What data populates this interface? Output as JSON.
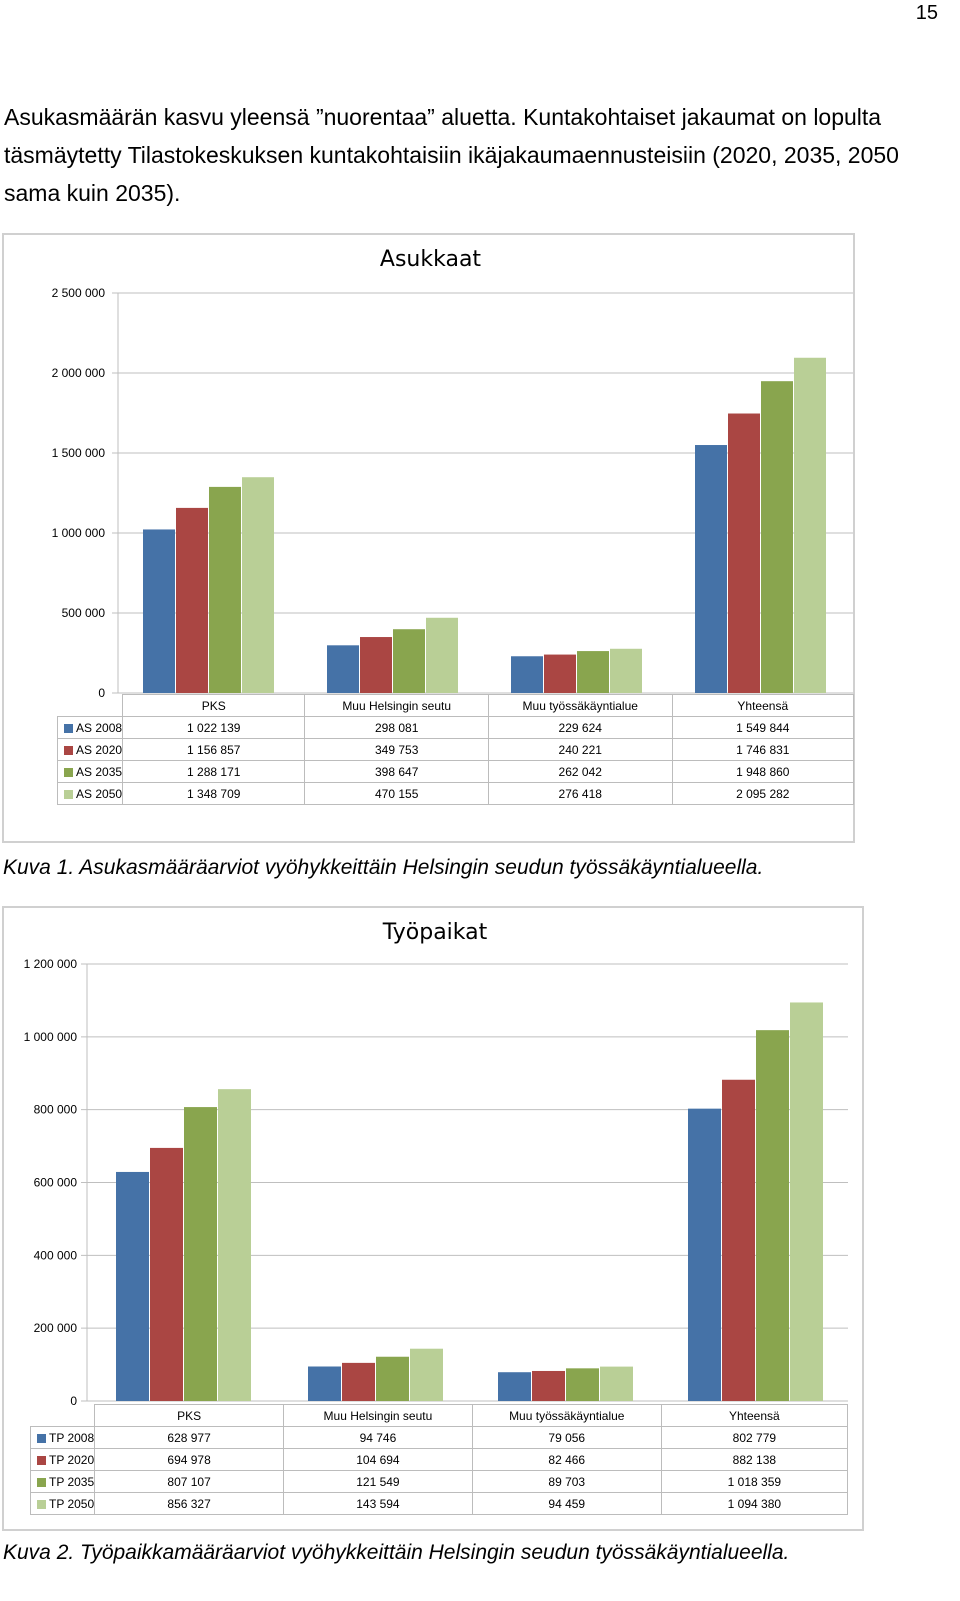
{
  "page": {
    "number": "15",
    "intro": "Asukasmäärän kasvu yleensä ”nuorentaa” aluetta. Kuntakohtaiset jakaumat on lopulta täsmäytetty Tilastokeskuksen kuntakohtaisiin ikäjakaumaennusteisiin (2020, 2035, 2050 sama kuin 2035)."
  },
  "captions": {
    "figure1": "Kuva 1. Asukasmääräarviot vyöhykkeittäin Helsingin seudun työssäkäyntialueella.",
    "figure2": "Kuva 2. Työpaikkamääräarviot vyöhykkeittäin Helsingin seudun työssäkäyntialueella."
  },
  "chart_data": [
    {
      "type": "bar",
      "title": "Asukkaat",
      "xlabel": "",
      "ylabel": "",
      "ylim": [
        0,
        2500000
      ],
      "yticks": [
        "0",
        "500 000",
        "1 000 000",
        "1 500 000",
        "2 000 000",
        "2 500 000"
      ],
      "ytick_values": [
        0,
        500000,
        1000000,
        1500000,
        2000000,
        2500000
      ],
      "grid": true,
      "legend": "data-table",
      "categories": [
        "PKS",
        "Muu Helsingin seutu",
        "Muu työssäkäyntialue",
        "Yhteensä"
      ],
      "series": [
        {
          "name": "AS 2008",
          "color": "#4572A7",
          "values": [
            1022139,
            298081,
            229624,
            1549844
          ],
          "labels": [
            "1 022 139",
            "298 081",
            "229 624",
            "1 549 844"
          ]
        },
        {
          "name": "AS 2020",
          "color": "#AA4643",
          "values": [
            1156857,
            349753,
            240221,
            1746831
          ],
          "labels": [
            "1 156 857",
            "349 753",
            "240 221",
            "1 746 831"
          ]
        },
        {
          "name": "AS 2035",
          "color": "#89A54E",
          "values": [
            1288171,
            398647,
            262042,
            1948860
          ],
          "labels": [
            "1 288 171",
            "398 647",
            "262 042",
            "1 948 860"
          ]
        },
        {
          "name": "AS 2050",
          "color": "#B9CF96",
          "values": [
            1348709,
            470155,
            276418,
            2095282
          ],
          "labels": [
            "1 348 709",
            "470 155",
            "276 418",
            "2 095 282"
          ]
        }
      ]
    },
    {
      "type": "bar",
      "title": "Työpaikat",
      "xlabel": "",
      "ylabel": "",
      "ylim": [
        0,
        1200000
      ],
      "yticks": [
        "0",
        "200 000",
        "400 000",
        "600 000",
        "800 000",
        "1 000 000",
        "1 200 000"
      ],
      "ytick_values": [
        0,
        200000,
        400000,
        600000,
        800000,
        1000000,
        1200000
      ],
      "grid": true,
      "legend": "data-table",
      "categories": [
        "PKS",
        "Muu Helsingin seutu",
        "Muu työssäkäyntialue",
        "Yhteensä"
      ],
      "series": [
        {
          "name": "TP 2008",
          "color": "#4572A7",
          "values": [
            628977,
            94746,
            79056,
            802779
          ],
          "labels": [
            "628 977",
            "94 746",
            "79 056",
            "802 779"
          ]
        },
        {
          "name": "TP 2020",
          "color": "#AA4643",
          "values": [
            694978,
            104694,
            82466,
            882138
          ],
          "labels": [
            "694 978",
            "104 694",
            "82 466",
            "882 138"
          ]
        },
        {
          "name": "TP 2035",
          "color": "#89A54E",
          "values": [
            807107,
            121549,
            89703,
            1018359
          ],
          "labels": [
            "807 107",
            "121 549",
            "89 703",
            "1 018 359"
          ]
        },
        {
          "name": "TP 2050",
          "color": "#B9CF96",
          "values": [
            856327,
            143594,
            94459,
            1094380
          ],
          "labels": [
            "856 327",
            "143 594",
            "94 459",
            "1 094 380"
          ]
        }
      ]
    }
  ]
}
